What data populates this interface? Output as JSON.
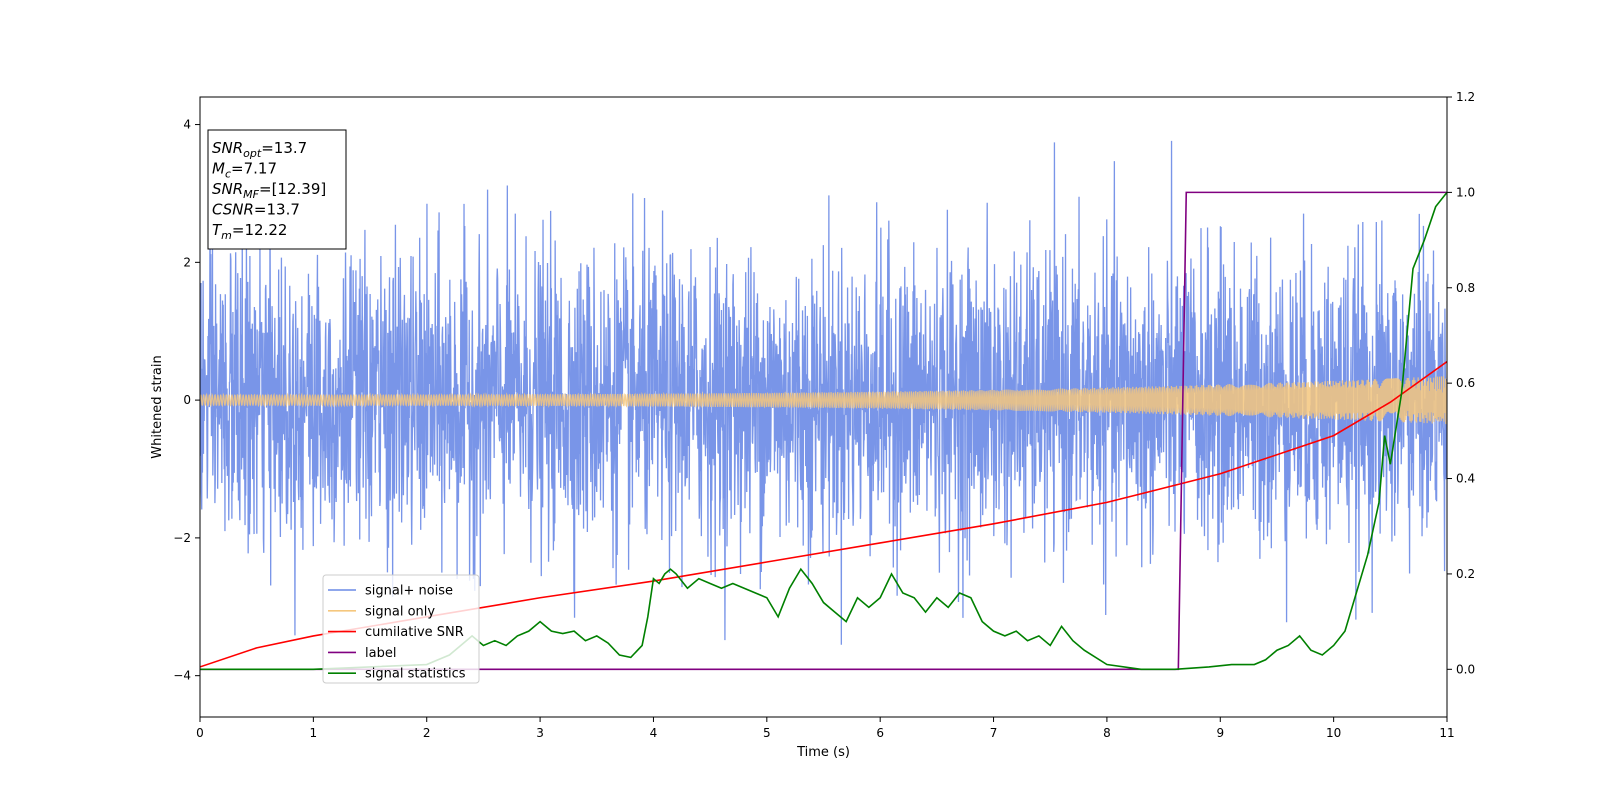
{
  "chart_data": {
    "type": "line",
    "title": "",
    "xlabel": "Time (s)",
    "ylabel": "Whitened strain",
    "xlim": [
      0,
      11
    ],
    "ylim": [
      -4.6,
      4.4
    ],
    "y2lim": [
      -0.1,
      1.2
    ],
    "xticks": [
      "0",
      "1",
      "2",
      "3",
      "4",
      "5",
      "6",
      "7",
      "8",
      "9",
      "10",
      "11"
    ],
    "yticks": [
      "4",
      "2",
      "0",
      "−2",
      "−4"
    ],
    "y2ticks": [
      "1.2",
      "1.0",
      "0.8",
      "0.6",
      "0.4",
      "0.2",
      "0.0"
    ],
    "grid": false,
    "legend_placement": "lower-left",
    "annotation": {
      "lines": [
        {
          "main": "SNR",
          "sub": "opt",
          "value": "=13.7"
        },
        {
          "main": "M",
          "sub": "c",
          "value": "=7.17"
        },
        {
          "main": "SNR",
          "sub": "MF",
          "value": "=[12.39]"
        },
        {
          "main": "CSNR",
          "sub": "",
          "value": "=13.7"
        },
        {
          "main": "T",
          "sub": "m",
          "value": "=12.22"
        }
      ]
    },
    "series": [
      {
        "name": "signal+ noise",
        "axis": "left",
        "color": "#6a8ae6",
        "kind": "noise",
        "std": 1.05,
        "max": 4.02,
        "min": -4.15
      },
      {
        "name": "signal only",
        "axis": "left",
        "color": "#f5c77e",
        "kind": "chirp",
        "amplitude_start": 0.08,
        "amplitude_end": 0.35
      },
      {
        "name": "cumilative SNR",
        "axis": "right",
        "x": [
          0,
          0.5,
          1,
          2,
          3,
          4,
          5,
          6,
          7,
          8,
          9,
          10,
          10.5,
          11
        ],
        "values": [
          0.005,
          0.045,
          0.07,
          0.11,
          0.15,
          0.185,
          0.225,
          0.265,
          0.305,
          0.35,
          0.41,
          0.49,
          0.56,
          0.645
        ],
        "color": "#ff0000"
      },
      {
        "name": "label",
        "axis": "right",
        "x": [
          0,
          8.63,
          8.7,
          11
        ],
        "values": [
          0.0,
          0.0,
          1.0,
          1.0
        ],
        "color": "#800080"
      },
      {
        "name": "signal statistics",
        "axis": "right",
        "x": [
          0,
          1,
          2,
          2.1,
          2.2,
          2.3,
          2.4,
          2.5,
          2.6,
          2.7,
          2.8,
          2.9,
          3.0,
          3.1,
          3.2,
          3.3,
          3.4,
          3.5,
          3.6,
          3.7,
          3.8,
          3.9,
          3.95,
          4.0,
          4.05,
          4.1,
          4.15,
          4.2,
          4.3,
          4.4,
          4.5,
          4.6,
          4.7,
          4.8,
          4.9,
          5.0,
          5.1,
          5.2,
          5.3,
          5.4,
          5.5,
          5.6,
          5.7,
          5.8,
          5.9,
          6.0,
          6.1,
          6.2,
          6.3,
          6.4,
          6.5,
          6.6,
          6.7,
          6.8,
          6.9,
          7.0,
          7.1,
          7.2,
          7.3,
          7.4,
          7.5,
          7.6,
          7.7,
          7.8,
          8.0,
          8.3,
          8.6,
          8.9,
          9.1,
          9.2,
          9.3,
          9.4,
          9.5,
          9.6,
          9.7,
          9.8,
          9.9,
          10.0,
          10.1,
          10.2,
          10.3,
          10.4,
          10.45,
          10.5,
          10.6,
          10.7,
          10.8,
          10.9,
          11.0
        ],
        "values": [
          0.0,
          0.0,
          0.01,
          0.02,
          0.03,
          0.05,
          0.07,
          0.05,
          0.06,
          0.05,
          0.07,
          0.08,
          0.1,
          0.08,
          0.075,
          0.08,
          0.06,
          0.07,
          0.055,
          0.03,
          0.025,
          0.05,
          0.11,
          0.19,
          0.18,
          0.2,
          0.21,
          0.2,
          0.17,
          0.19,
          0.18,
          0.17,
          0.18,
          0.17,
          0.16,
          0.15,
          0.11,
          0.17,
          0.21,
          0.18,
          0.14,
          0.12,
          0.1,
          0.15,
          0.13,
          0.15,
          0.2,
          0.16,
          0.15,
          0.12,
          0.15,
          0.13,
          0.16,
          0.15,
          0.1,
          0.08,
          0.07,
          0.08,
          0.06,
          0.07,
          0.05,
          0.09,
          0.06,
          0.04,
          0.01,
          0.0,
          0.0,
          0.005,
          0.01,
          0.01,
          0.01,
          0.02,
          0.04,
          0.05,
          0.07,
          0.04,
          0.03,
          0.05,
          0.08,
          0.16,
          0.24,
          0.35,
          0.49,
          0.43,
          0.58,
          0.84,
          0.9,
          0.97,
          1.0
        ],
        "color": "#008000"
      }
    ]
  }
}
